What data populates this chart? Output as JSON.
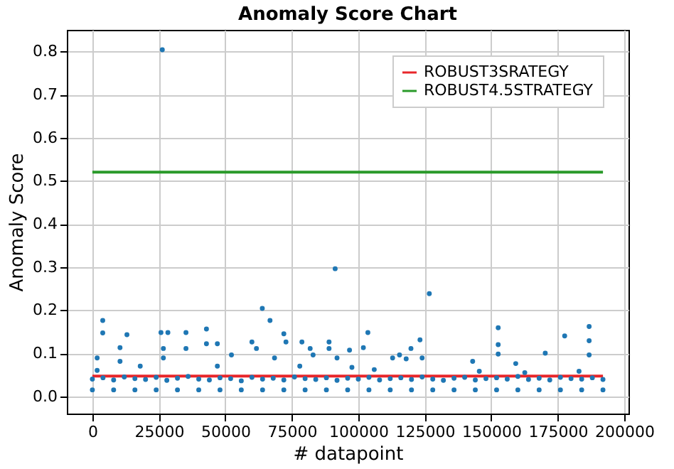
{
  "chart_data": {
    "type": "scatter",
    "title": "Anomaly Score Chart",
    "xlabel": "# datapoint",
    "ylabel": "Anomaly Score",
    "xlim": [
      -9600,
      201600
    ],
    "xticks": [
      0,
      25000,
      50000,
      75000,
      100000,
      125000,
      150000,
      175000,
      200000
    ],
    "ylim": [
      -0.04,
      0.85
    ],
    "yticks": [
      {
        "value": 0,
        "label": "0.0"
      },
      0.1,
      0.2,
      0.3,
      0.4,
      0.5,
      0.6,
      0.7,
      0.8
    ],
    "grid": true,
    "legend": "top right",
    "marker": "circle",
    "series": [
      {
        "type": "scatter",
        "color": "#1f77b4",
        "x": [
          0,
          4000,
          8000,
          12000,
          16000,
          20000,
          24000,
          28000,
          32000,
          36000,
          40000,
          44000,
          48000,
          52000,
          56000,
          60000,
          64000,
          68000,
          72000,
          76000,
          80000,
          84000,
          88000,
          92000,
          96000,
          100000,
          104000,
          108000,
          112000,
          116000,
          120000,
          124000,
          128000,
          132000,
          136000,
          140000,
          144000,
          148000,
          152000,
          156000,
          160000,
          164000,
          168000,
          172000,
          176000,
          180000,
          184000,
          188000,
          192000,
          0,
          8000,
          16000,
          24000,
          32000,
          40000,
          48000,
          56000,
          64000,
          72000,
          80000,
          88000,
          96000,
          104000,
          112000,
          120000,
          128000,
          136000,
          144000,
          152000,
          160000,
          168000,
          176000,
          184000,
          192000,
          3900,
          3900,
          1800,
          1800,
          10400,
          10400,
          13000,
          18000,
          25800,
          26700,
          26700,
          28400,
          35200,
          35200,
          42900,
          42900,
          47000,
          47000,
          52300,
          60000,
          61700,
          63900,
          66800,
          68500,
          72000,
          72800,
          78000,
          78800,
          81900,
          83000,
          89000,
          89000,
          91300,
          92000,
          96700,
          97600,
          101900,
          103600,
          106000,
          112900,
          115500,
          118000,
          119800,
          123200,
          124000,
          126700,
          143000,
          145500,
          152600,
          152600,
          152600,
          159200,
          162600,
          170300,
          177600,
          183000,
          186800,
          186800,
          186800,
          26300
        ],
        "values": [
          0.04,
          0.043,
          0.038,
          0.045,
          0.041,
          0.039,
          0.044,
          0.037,
          0.042,
          0.046,
          0.04,
          0.038,
          0.043,
          0.041,
          0.036,
          0.044,
          0.04,
          0.042,
          0.038,
          0.045,
          0.041,
          0.039,
          0.043,
          0.037,
          0.042,
          0.04,
          0.044,
          0.038,
          0.041,
          0.043,
          0.039,
          0.045,
          0.04,
          0.037,
          0.042,
          0.044,
          0.038,
          0.041,
          0.043,
          0.04,
          0.046,
          0.039,
          0.042,
          0.038,
          0.044,
          0.041,
          0.04,
          0.043,
          0.039,
          0.015,
          0.015,
          0.015,
          0.015,
          0.015,
          0.015,
          0.015,
          0.015,
          0.015,
          0.015,
          0.015,
          0.015,
          0.015,
          0.015,
          0.015,
          0.015,
          0.015,
          0.015,
          0.015,
          0.015,
          0.015,
          0.015,
          0.015,
          0.015,
          0.015,
          0.176,
          0.147,
          0.089,
          0.06,
          0.113,
          0.081,
          0.143,
          0.07,
          0.148,
          0.111,
          0.089,
          0.148,
          0.148,
          0.111,
          0.156,
          0.122,
          0.122,
          0.07,
          0.096,
          0.126,
          0.111,
          0.204,
          0.176,
          0.089,
          0.145,
          0.126,
          0.07,
          0.126,
          0.111,
          0.096,
          0.126,
          0.111,
          0.296,
          0.089,
          0.107,
          0.067,
          0.113,
          0.148,
          0.062,
          0.089,
          0.096,
          0.087,
          0.111,
          0.131,
          0.089,
          0.238,
          0.081,
          0.058,
          0.159,
          0.12,
          0.098,
          0.076,
          0.055,
          0.1,
          0.14,
          0.058,
          0.162,
          0.129,
          0.096,
          0.804
        ]
      },
      {
        "type": "line",
        "name": "ROBUST3SRATEGY",
        "color": "#e8262a",
        "marker": "none",
        "x": [
          0,
          192000
        ],
        "values": [
          0.047,
          0.047
        ]
      },
      {
        "type": "line",
        "name": "ROBUST4.5STRATEGY",
        "color": "#2a9a2a",
        "marker": "none",
        "x": [
          0,
          192000
        ],
        "values": [
          0.52,
          0.52
        ]
      }
    ]
  }
}
